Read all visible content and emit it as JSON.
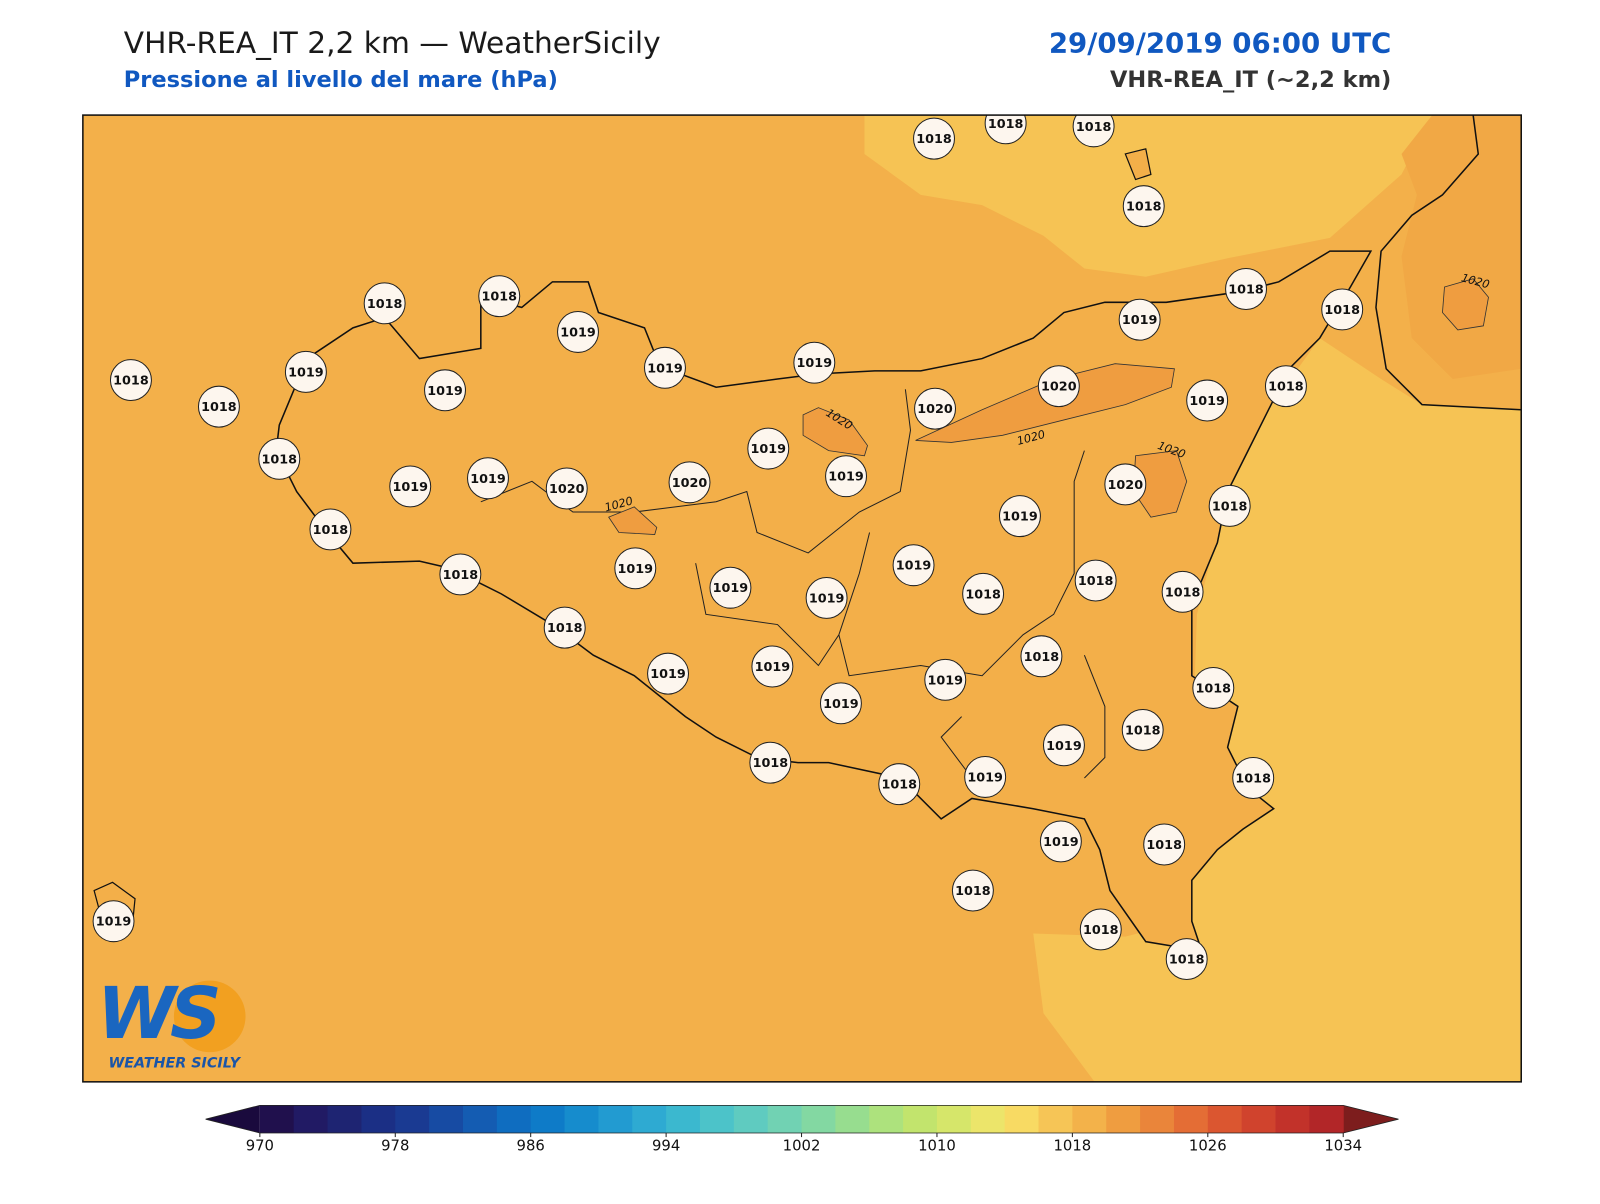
{
  "header": {
    "title": "VHR-REA_IT 2,2 km — WeatherSicily",
    "subtitle": "Pressione al livello del mare (hPa)",
    "datetime": "29/09/2019 06:00 UTC",
    "model": "VHR-REA_IT (~2,2 km)"
  },
  "stations": [
    1018,
    1018,
    1018,
    1018,
    1018,
    1018,
    1019,
    1019,
    1019,
    1019,
    1018,
    1018,
    1018,
    1019,
    1018,
    1019,
    1020,
    1020,
    1019,
    1018,
    1018,
    1019,
    1019,
    1019,
    1020,
    1020,
    1019,
    1020,
    1019,
    1018,
    1018,
    1018,
    1019,
    1019,
    1019,
    1019,
    1018,
    1018,
    1018,
    1018,
    1018,
    1019,
    1019,
    1019,
    1019,
    1018,
    1018,
    1019,
    1018,
    1018,
    1019,
    1018,
    1019,
    1018,
    1018,
    1018,
    1018,
    1019
  ],
  "contour_labels": [
    1020,
    1020,
    1020,
    1020,
    1020
  ],
  "logo": {
    "mark": "WS",
    "text": "WEATHER SICILY"
  },
  "colorbar": {
    "levels": [
      970,
      972,
      974,
      976,
      978,
      980,
      982,
      984,
      986,
      988,
      990,
      992,
      994,
      996,
      998,
      1000,
      1002,
      1004,
      1006,
      1008,
      1010,
      1012,
      1014,
      1016,
      1018,
      1020,
      1022,
      1024,
      1026,
      1028,
      1030,
      1032,
      1034
    ],
    "colors": [
      "#20104d",
      "#211a64",
      "#1e2472",
      "#1b2f85",
      "#1a3a92",
      "#174ba3",
      "#145cb2",
      "#0f6dc0",
      "#0e7bc8",
      "#168ccd",
      "#229bd1",
      "#2eaad2",
      "#3bb8cf",
      "#4cc3c9",
      "#5fcbc0",
      "#71d2b3",
      "#83d8a2",
      "#97dd8f",
      "#ade27d",
      "#c2e46d",
      "#d6e66a",
      "#ece56a",
      "#f8da63",
      "#f6c556",
      "#f3b24a",
      "#ef9d40",
      "#ea853a",
      "#e46d35",
      "#db5630",
      "#d0432d",
      "#c2322a",
      "#b22628"
    ],
    "under_color": "#1a0a3d",
    "over_color": "#7d1d1d",
    "ticks": [
      970,
      978,
      986,
      994,
      1002,
      1010,
      1018,
      1026,
      1034
    ]
  }
}
